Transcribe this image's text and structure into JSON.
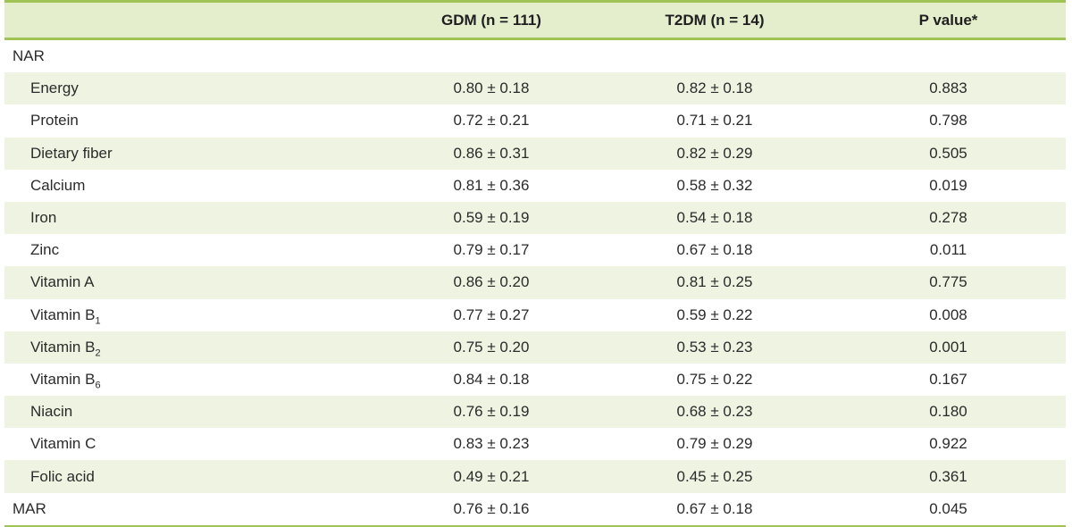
{
  "table": {
    "colors": {
      "accent_border": "#a0c355",
      "header_bg": "#e4eecd",
      "alt_row_bg": "#eff3e2",
      "text": "#2b2b2b"
    },
    "columns": {
      "label": "",
      "gdm": "GDM (n = 111)",
      "t2dm": "T2DM (n = 14)",
      "p": "P value*"
    },
    "rows": [
      {
        "label": "NAR",
        "sub": "",
        "indent": false,
        "gdm": "",
        "t2dm": "",
        "p": ""
      },
      {
        "label": "Energy",
        "sub": "",
        "indent": true,
        "gdm": "0.80 ± 0.18",
        "t2dm": "0.82 ± 0.18",
        "p": "0.883"
      },
      {
        "label": "Protein",
        "sub": "",
        "indent": true,
        "gdm": "0.72 ± 0.21",
        "t2dm": "0.71 ± 0.21",
        "p": "0.798"
      },
      {
        "label": "Dietary fiber",
        "sub": "",
        "indent": true,
        "gdm": "0.86 ± 0.31",
        "t2dm": "0.82 ± 0.29",
        "p": "0.505"
      },
      {
        "label": "Calcium",
        "sub": "",
        "indent": true,
        "gdm": "0.81 ± 0.36",
        "t2dm": "0.58 ± 0.32",
        "p": "0.019"
      },
      {
        "label": "Iron",
        "sub": "",
        "indent": true,
        "gdm": "0.59 ± 0.19",
        "t2dm": "0.54 ± 0.18",
        "p": "0.278"
      },
      {
        "label": "Zinc",
        "sub": "",
        "indent": true,
        "gdm": "0.79 ± 0.17",
        "t2dm": "0.67 ± 0.18",
        "p": "0.011"
      },
      {
        "label": "Vitamin A",
        "sub": "",
        "indent": true,
        "gdm": "0.86 ± 0.20",
        "t2dm": "0.81 ± 0.25",
        "p": "0.775"
      },
      {
        "label": "Vitamin B",
        "sub": "1",
        "indent": true,
        "gdm": "0.77 ± 0.27",
        "t2dm": "0.59 ± 0.22",
        "p": "0.008"
      },
      {
        "label": "Vitamin B",
        "sub": "2",
        "indent": true,
        "gdm": "0.75 ± 0.20",
        "t2dm": "0.53 ± 0.23",
        "p": "0.001"
      },
      {
        "label": "Vitamin B",
        "sub": "6",
        "indent": true,
        "gdm": "0.84 ± 0.18",
        "t2dm": "0.75 ± 0.22",
        "p": "0.167"
      },
      {
        "label": "Niacin",
        "sub": "",
        "indent": true,
        "gdm": "0.76 ± 0.19",
        "t2dm": "0.68 ± 0.23",
        "p": "0.180"
      },
      {
        "label": "Vitamin C",
        "sub": "",
        "indent": true,
        "gdm": "0.83 ± 0.23",
        "t2dm": "0.79 ± 0.29",
        "p": "0.922"
      },
      {
        "label": "Folic acid",
        "sub": "",
        "indent": true,
        "gdm": "0.49 ± 0.21",
        "t2dm": "0.45 ± 0.25",
        "p": "0.361"
      },
      {
        "label": "MAR",
        "sub": "",
        "indent": false,
        "gdm": "0.76 ± 0.16",
        "t2dm": "0.67 ± 0.18",
        "p": "0.045"
      }
    ]
  }
}
